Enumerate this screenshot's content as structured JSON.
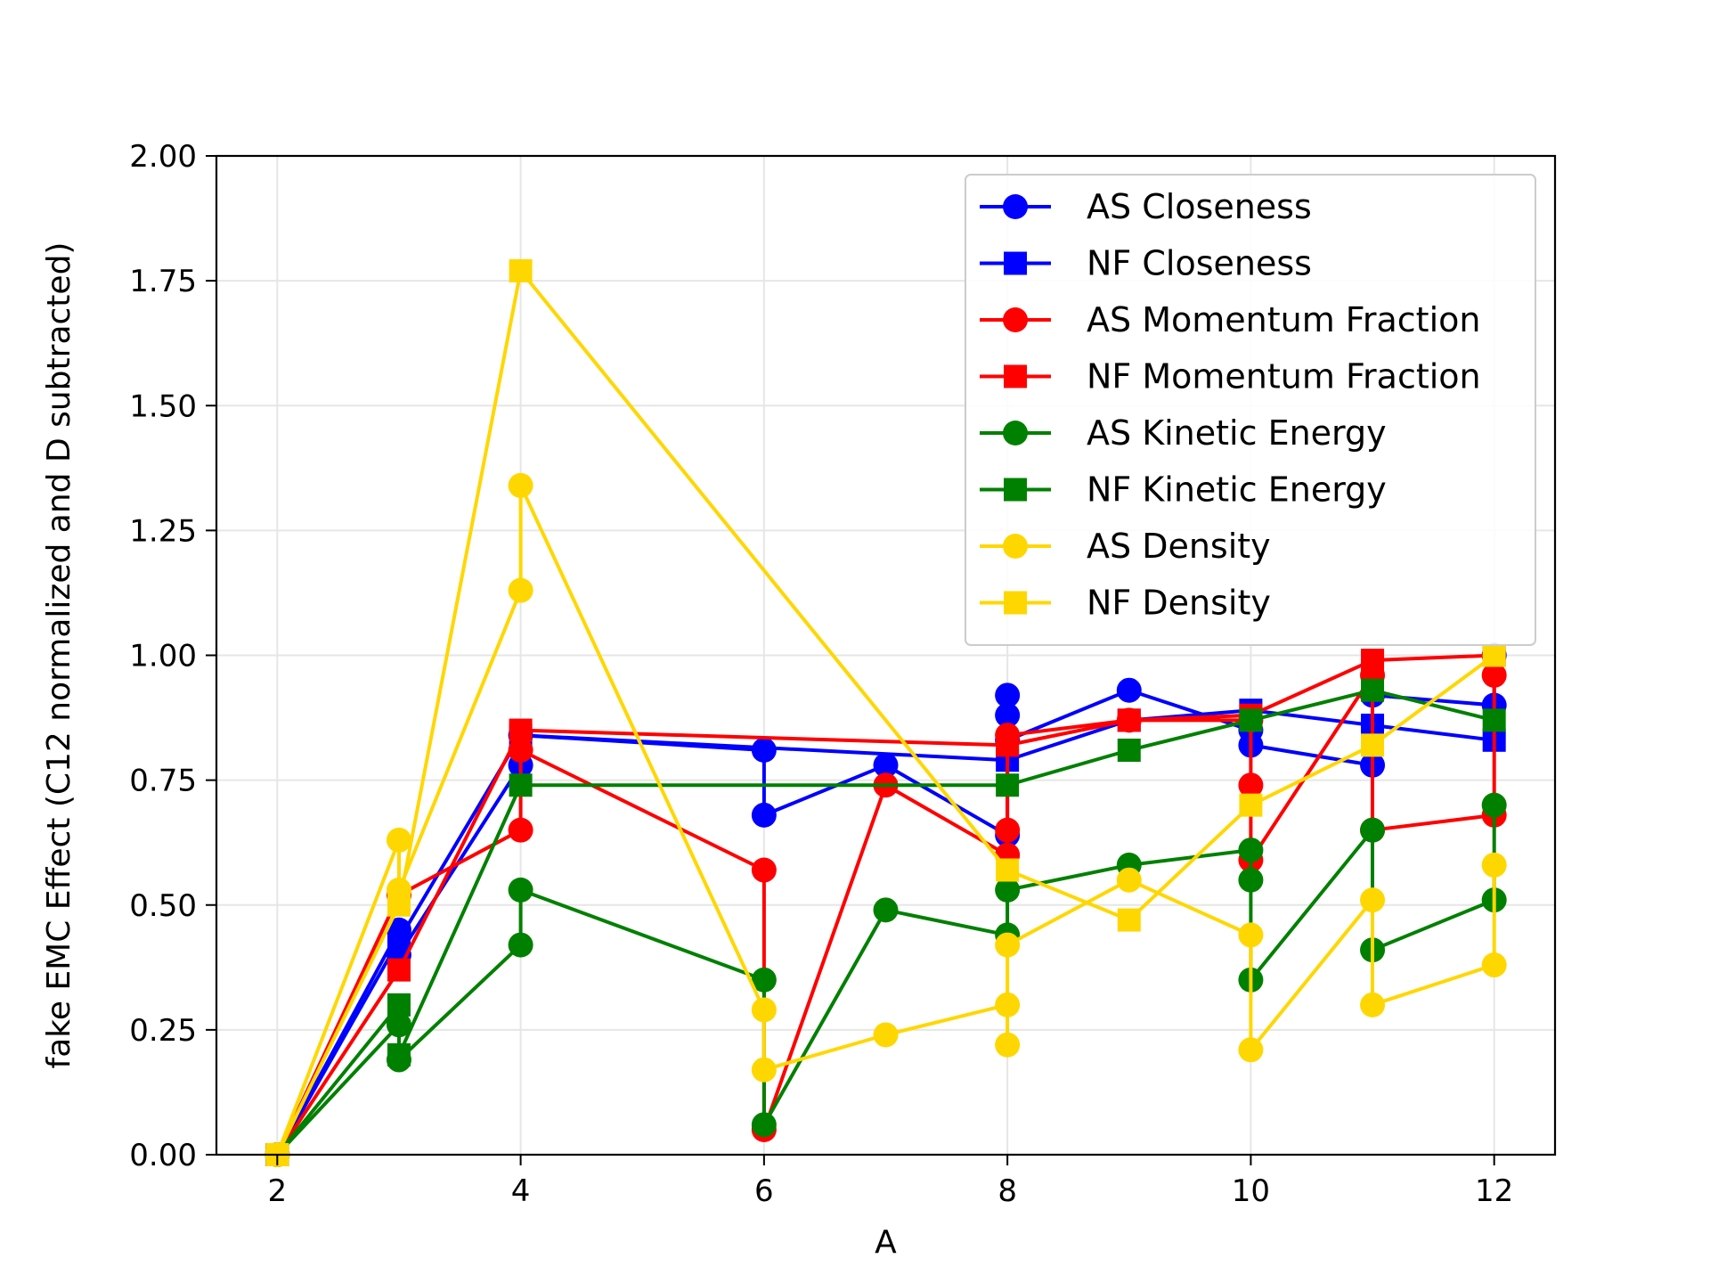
{
  "chart_data": {
    "type": "line",
    "xlabel": "A",
    "ylabel": "fake EMC Effect (C12 normalized and D subtracted)",
    "xlim": [
      1.5,
      12.5
    ],
    "ylim": [
      0,
      2
    ],
    "xticks": [
      2,
      4,
      6,
      8,
      10,
      12
    ],
    "yticks": [
      0,
      0.25,
      0.5,
      0.75,
      1.0,
      1.25,
      1.5,
      1.75,
      2.0
    ],
    "ytick_labels": [
      "0.00",
      "0.25",
      "0.50",
      "0.75",
      "1.00",
      "1.25",
      "1.50",
      "1.75",
      "2.00"
    ],
    "grid": true,
    "legend_position": "top-right",
    "series": [
      {
        "name": "AS Closeness",
        "color": "#0000ff",
        "marker": "circle",
        "points": [
          [
            2,
            0.0
          ],
          [
            3,
            0.45
          ],
          [
            3,
            0.4
          ],
          [
            4,
            0.78
          ],
          [
            4,
            0.84
          ],
          [
            6,
            0.81
          ],
          [
            6,
            0.68
          ],
          [
            7,
            0.78
          ],
          [
            8,
            0.64
          ],
          [
            8,
            0.88
          ],
          [
            8,
            0.92
          ],
          [
            8,
            0.83
          ],
          [
            9,
            0.93
          ],
          [
            10,
            0.85
          ],
          [
            10,
            0.82
          ],
          [
            11,
            0.78
          ],
          [
            11,
            0.92
          ],
          [
            12,
            0.9
          ],
          [
            12,
            1.0
          ]
        ]
      },
      {
        "name": "NF Closeness",
        "color": "#0000ff",
        "marker": "square",
        "points": [
          [
            2,
            0.0
          ],
          [
            3,
            0.43
          ],
          [
            4,
            0.84
          ],
          [
            8,
            0.79
          ],
          [
            9,
            0.87
          ],
          [
            10,
            0.89
          ],
          [
            11,
            0.86
          ],
          [
            12,
            0.83
          ]
        ]
      },
      {
        "name": "AS Momentum Fraction",
        "color": "#ff0000",
        "marker": "circle",
        "points": [
          [
            2,
            0.0
          ],
          [
            3,
            0.52
          ],
          [
            4,
            0.65
          ],
          [
            4,
            0.81
          ],
          [
            6,
            0.57
          ],
          [
            6,
            0.05
          ],
          [
            7,
            0.74
          ],
          [
            8,
            0.6
          ],
          [
            8,
            0.65
          ],
          [
            8,
            0.84
          ],
          [
            9,
            0.87
          ],
          [
            10,
            0.87
          ],
          [
            10,
            0.74
          ],
          [
            10,
            0.59
          ],
          [
            11,
            0.96
          ],
          [
            11,
            0.65
          ],
          [
            12,
            0.68
          ],
          [
            12,
            0.96
          ]
        ]
      },
      {
        "name": "NF Momentum Fraction",
        "color": "#ff0000",
        "marker": "square",
        "points": [
          [
            2,
            0.0
          ],
          [
            3,
            0.37
          ],
          [
            4,
            0.85
          ],
          [
            8,
            0.82
          ],
          [
            9,
            0.87
          ],
          [
            10,
            0.88
          ],
          [
            11,
            0.99
          ],
          [
            12,
            1.0
          ]
        ]
      },
      {
        "name": "AS Kinetic Energy",
        "color": "#008000",
        "marker": "circle",
        "points": [
          [
            2,
            0.0
          ],
          [
            3,
            0.26
          ],
          [
            3,
            0.19
          ],
          [
            4,
            0.42
          ],
          [
            4,
            0.53
          ],
          [
            6,
            0.35
          ],
          [
            6,
            0.06
          ],
          [
            7,
            0.49
          ],
          [
            8,
            0.44
          ],
          [
            8,
            0.53
          ],
          [
            9,
            0.58
          ],
          [
            10,
            0.61
          ],
          [
            10,
            0.55
          ],
          [
            10,
            0.35
          ],
          [
            11,
            0.65
          ],
          [
            11,
            0.41
          ],
          [
            12,
            0.51
          ],
          [
            12,
            0.7
          ]
        ]
      },
      {
        "name": "NF Kinetic Energy",
        "color": "#008000",
        "marker": "square",
        "points": [
          [
            2,
            0.0
          ],
          [
            3,
            0.3
          ],
          [
            3,
            0.2
          ],
          [
            4,
            0.74
          ],
          [
            8,
            0.74
          ],
          [
            9,
            0.81
          ],
          [
            10,
            0.87
          ],
          [
            11,
            0.93
          ],
          [
            12,
            0.87
          ]
        ]
      },
      {
        "name": "AS Density",
        "color": "#ffd700",
        "marker": "circle",
        "points": [
          [
            2,
            0.0
          ],
          [
            3,
            0.63
          ],
          [
            3,
            0.53
          ],
          [
            4,
            1.13
          ],
          [
            4,
            1.34
          ],
          [
            6,
            0.29
          ],
          [
            6,
            0.17
          ],
          [
            7,
            0.24
          ],
          [
            8,
            0.3
          ],
          [
            8,
            0.22
          ],
          [
            8,
            0.42
          ],
          [
            9,
            0.55
          ],
          [
            10,
            0.44
          ],
          [
            10,
            0.21
          ],
          [
            11,
            0.51
          ],
          [
            11,
            0.3
          ],
          [
            12,
            0.38
          ],
          [
            12,
            0.58
          ]
        ]
      },
      {
        "name": "NF Density",
        "color": "#ffd700",
        "marker": "square",
        "points": [
          [
            2,
            0.0
          ],
          [
            3,
            0.5
          ],
          [
            4,
            1.77
          ],
          [
            8,
            0.57
          ],
          [
            9,
            0.47
          ],
          [
            10,
            0.7
          ],
          [
            11,
            0.82
          ],
          [
            12,
            1.0
          ]
        ]
      }
    ]
  }
}
